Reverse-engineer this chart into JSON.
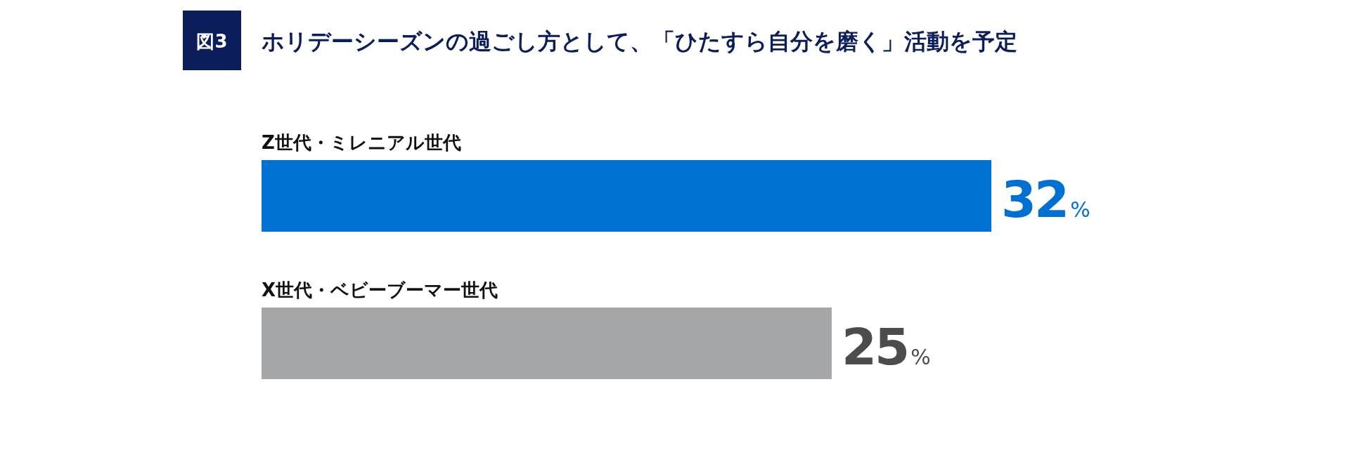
{
  "chart_data": {
    "type": "bar",
    "orientation": "horizontal",
    "title": "ホリデーシーズンの過ごし方として、「ひたすら自分を磨く」活動を予定",
    "annotations": [
      "図3"
    ],
    "categories": [
      "Z世代・ミレニアル世代",
      "X世代・ベビーブーマー世代"
    ],
    "values": [
      32,
      25
    ],
    "colors": [
      "#0070d2",
      "#a5a6a8"
    ],
    "value_labels": [
      "32%",
      "25%"
    ]
  }
}
